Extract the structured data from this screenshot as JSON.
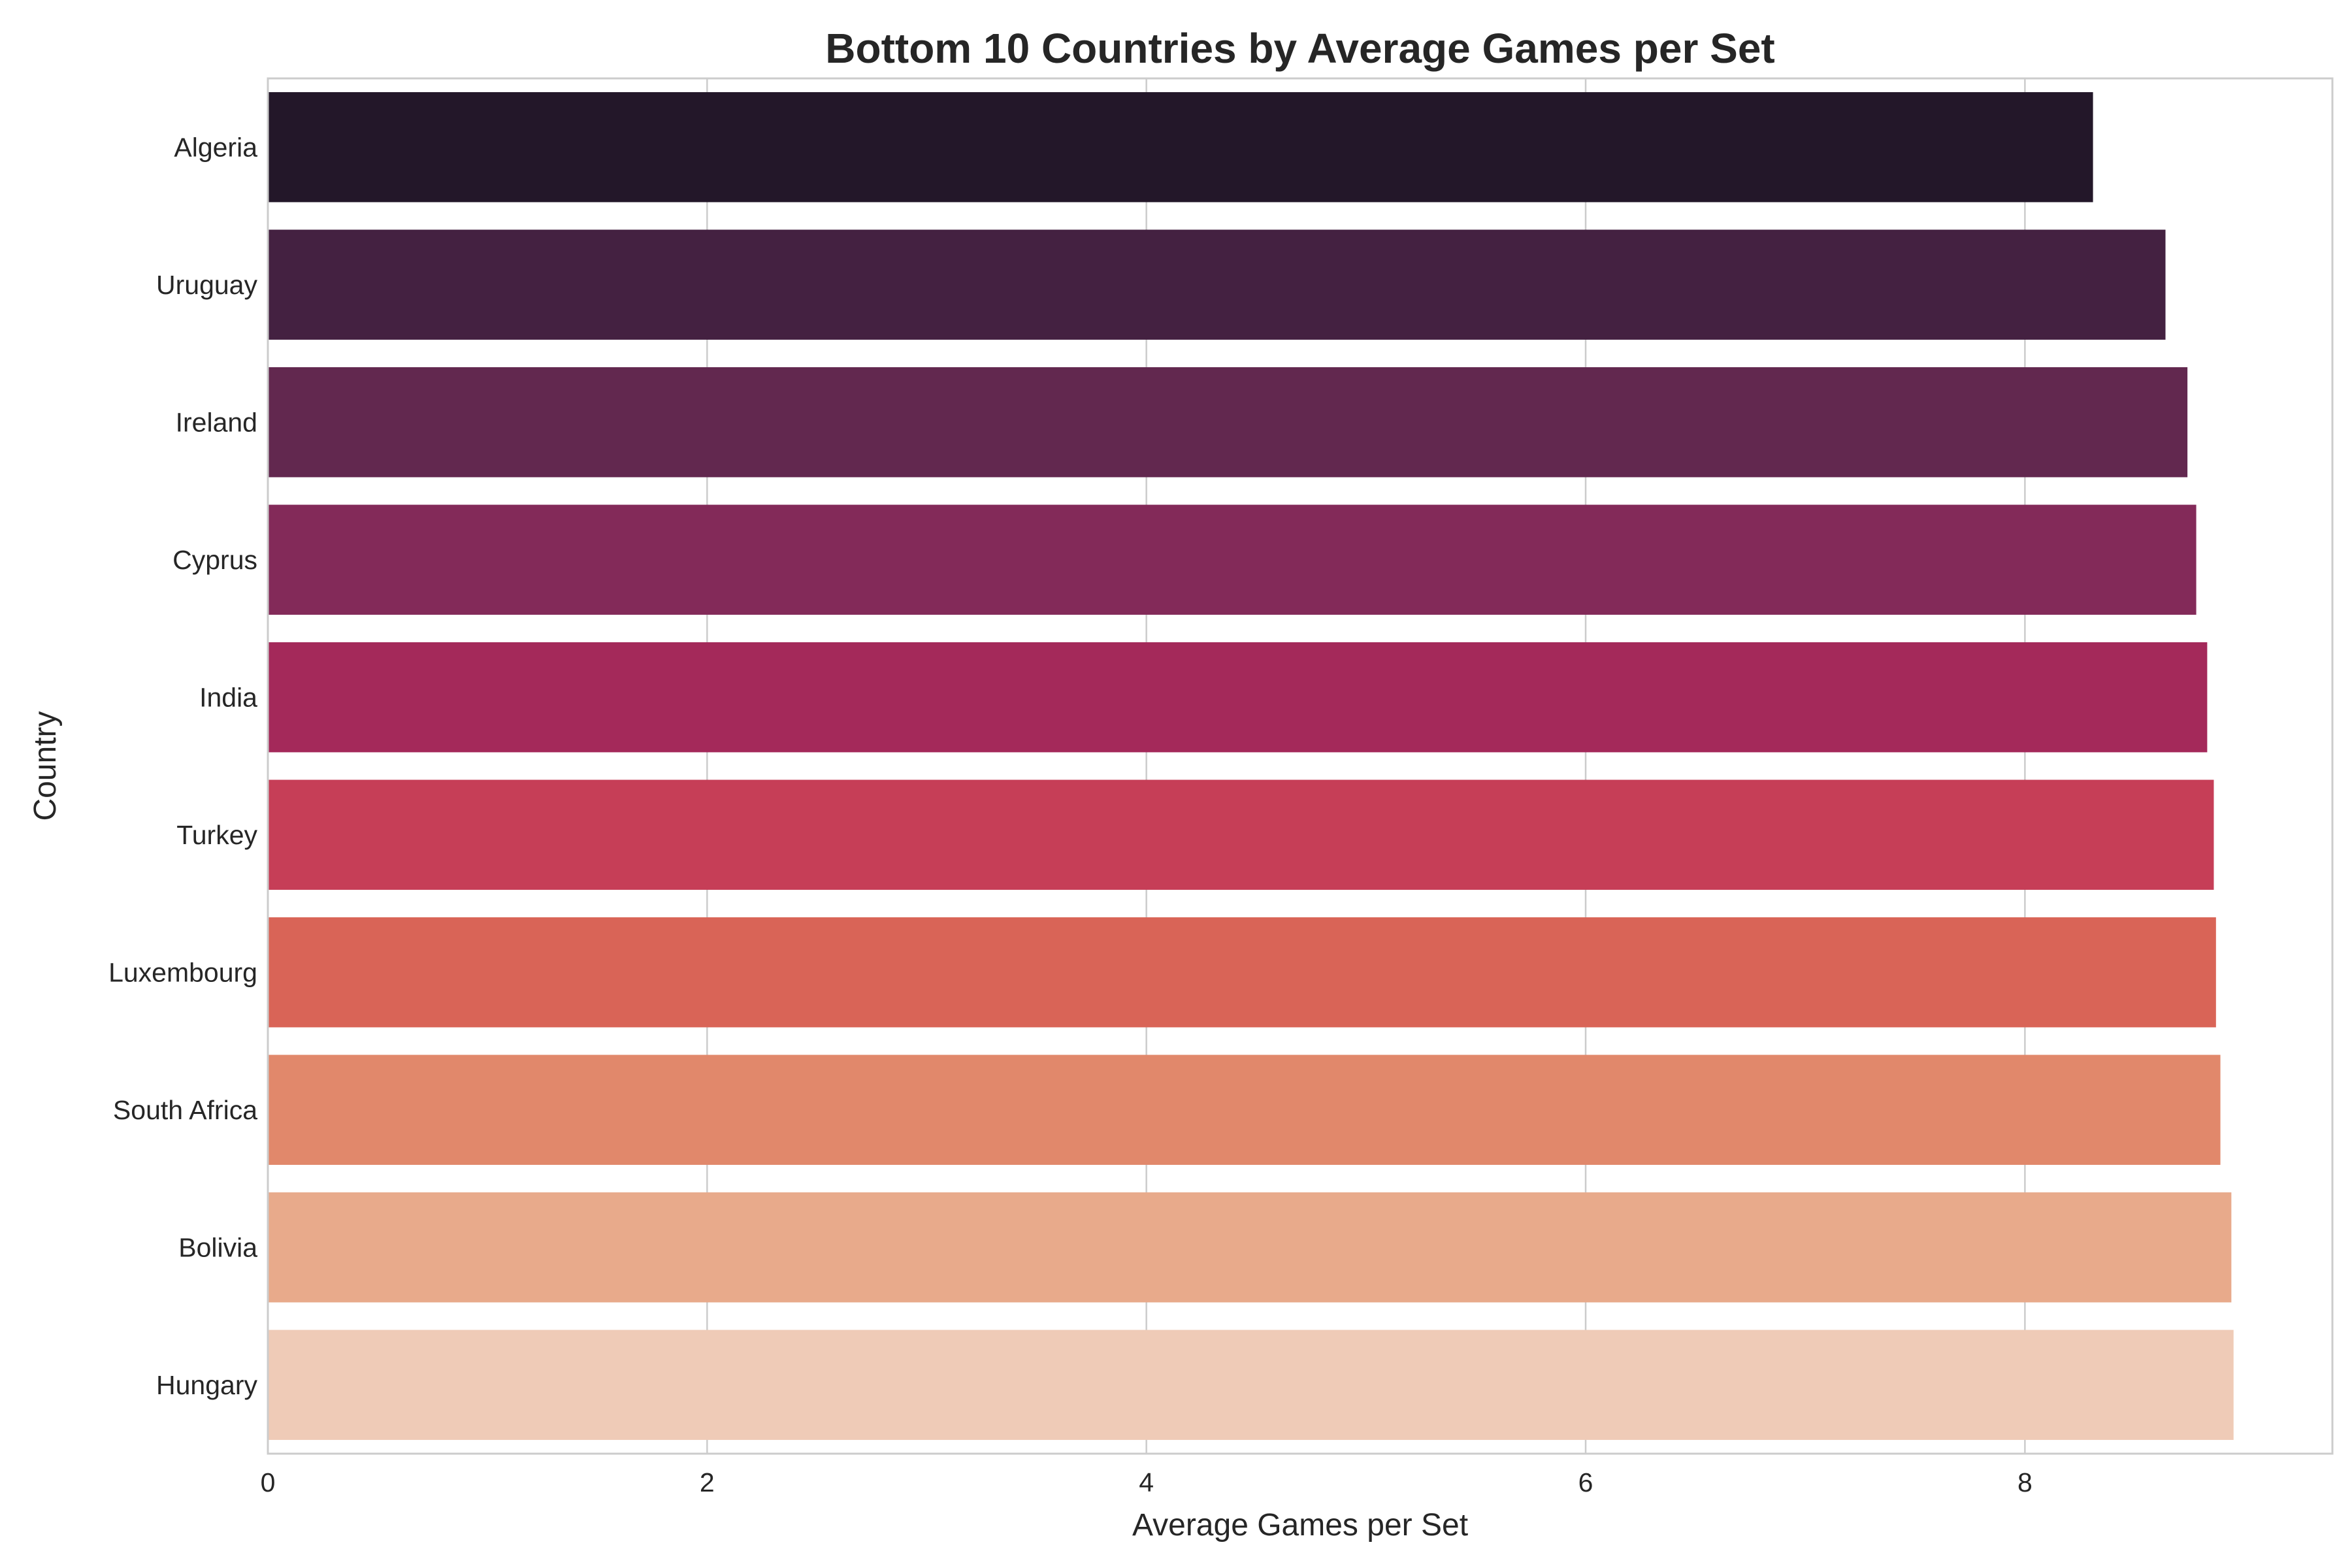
{
  "chart_data": {
    "type": "bar",
    "orientation": "horizontal",
    "title": "Bottom 10 Countries by Average Games per Set",
    "xlabel": "Average Games per Set",
    "ylabel": "Country",
    "xlim": [
      0,
      9.4
    ],
    "xticks": [
      0,
      2,
      4,
      6,
      8
    ],
    "grid": true,
    "categories": [
      "Algeria",
      "Uruguay",
      "Ireland",
      "Cyprus",
      "India",
      "Turkey",
      "Luxembourg",
      "South Africa",
      "Bolivia",
      "Hungary"
    ],
    "values": [
      8.31,
      8.64,
      8.74,
      8.78,
      8.83,
      8.86,
      8.87,
      8.89,
      8.94,
      8.95
    ],
    "colors": [
      "#231729",
      "#442141",
      "#62284f",
      "#832a59",
      "#a4295a",
      "#c63e57",
      "#d96457",
      "#e1886b",
      "#e8aa8b",
      "#efcbb7"
    ]
  }
}
